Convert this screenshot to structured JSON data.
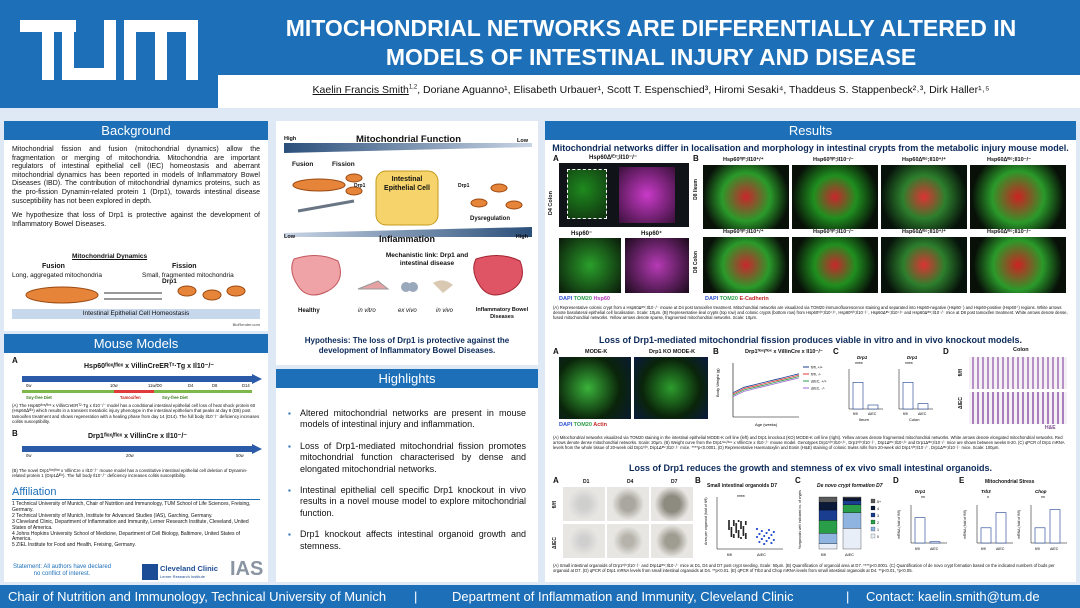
{
  "header": {
    "title_line1": "MITOCHONDRIAL NETWORKS ARE DIFFERENTIALLY ALTERED IN",
    "title_line2": "MODELS OF INTESTINAL INJURY AND DISEASE",
    "presenter": "Kaelin Francis Smith",
    "presenter_aff": "1,2",
    "authors_rest": ", Doriane Aguanno¹, Elisabeth Urbauer¹, Scott T. Espenschied³, Hiromi Sesaki⁴, Thaddeus S. Stappenbeck²˒³, Dirk Haller¹˒⁵"
  },
  "background": {
    "heading": "Background",
    "p1": "Mitochondrial fission and fusion (mitochondrial dynamics) allow the fragmentation or merging of mitochondria. Mitochondria are important regulators of intestinal epithelial cell (IEC) homeostasis and aberrant mitochondrial dynamics has been reported in models of Inflammatory Bowel Diseases (IBD). The contribution of mitochondrial dynamics proteins, such as the pro-fission Dynamin-related protein 1 (Drp1), towards intestinal disease susceptibility has not been explored in depth.",
    "p2": "We hypothesize that loss of Drp1 is protective against the development of Inflammatory Bowel Diseases.",
    "dyn_title": "Mitochondrial Dynamics",
    "fusion": "Fusion",
    "fission": "Fission",
    "fusion_sub": "Long, aggregated mitochondria",
    "fission_sub": "Small, fragmented mitochondria",
    "drp1": "Drp1",
    "homeo": "Intestinal Epithelial Cell Homeostasis",
    "credit": "BioRender.com"
  },
  "mouse": {
    "heading": "Mouse Models",
    "a_label": "A",
    "b_label": "B",
    "a_title": "Hsp60ᶠˡᵒˣ/ᶠˡᵒˣ x VillinCreERᵀ²·Tg x Il10⁻/⁻",
    "a_ticks": [
      "0w",
      "10w",
      "11w/D0",
      "D4",
      "D8",
      "D14"
    ],
    "a_soy": "Soy-free Diet",
    "a_tam": "Tamoxifen",
    "a_soy2": "Soy-free Diet",
    "a_caption": "(A) The Hsp60ᶠˡᵒˣ/ᶠˡᵒˣ x VillinCreERᵀ²·Tg x Il10⁻/⁻ model has a conditional intestinal epithelial cell loss of heat shock protein 60 (Hsp60ᐃᴵᴱᶜ) which results in a transient metabolic injury phenotype in the intestinal epithelium that peaks at day 8 (D8) post tamoxifen treatment and shows regeneration with a healing phase from day 14 (D14). The full body Il10⁻/⁻ deficiency increases colitis susceptibility.",
    "b_title": "Drp1ᶠˡᵒˣ/ᶠˡᵒˣ x VillinCre x Il10⁻/⁻",
    "b_ticks": [
      "0w",
      "20w",
      "50w"
    ],
    "b_caption": "(B) The novel Drp1ᶠˡᵒˣ/ᶠˡᵒˣ x VillinCre x Il10⁻/⁻ mouse model has a constitutive intestinal epithelial cell deletion of Dynamin-related protein 1 (Drp1ᐃᴵᴱᶜ). The full body Il10⁻/⁻ deficiency increases colitis susceptibility."
  },
  "affiliation": {
    "heading": "Affiliation",
    "items": [
      "1 Technical University of Munich, Chair of Nutrition and Immunology, TUM School of Life Sciences, Freising, Germany.",
      "2 Technical University of Munich, Institute for Advanced Studies (IAS), Garching, Germany.",
      "3 Cleveland Clinic, Department of Inflammation and Immunity, Lerner Research Institute, Cleveland, United States of America.",
      "4 Johns Hopkins University School of Medicine, Department of Cell Biology, Baltimore, United States of America.",
      "5 ZIEL Institute for Food and Health, Freising, Germany."
    ],
    "statement": "Statement: All authors have declared no conflict of interest.",
    "cc_name": "Cleveland Clinic",
    "cc_sub": "Lerner Research Institute",
    "ias": "IAS"
  },
  "mito_fig": {
    "title": "Mitochondrial Function",
    "high": "High",
    "low": "Low",
    "fusion": "Fusion",
    "fission": "Fission",
    "drp1a": "Drp1",
    "drp1b": "Drp1",
    "cell": "Intestinal Epithelial Cell",
    "dysreg": "Dysregulation",
    "inflammation": "Inflammation",
    "low2": "Low",
    "high2": "High",
    "mech": "Mechanistic link: Drp1 and intestinal disease",
    "healthy": "Healthy",
    "invitro": "in vitro",
    "exvivo": "ex vivo",
    "invivo": "in vivo",
    "ibd": "Inflammatory Bowel Diseases",
    "hypothesis": "Hypothesis: The loss of Drp1 is protective against the development of Inflammatory Bowel Diseases."
  },
  "highlights": {
    "heading": "Highlights",
    "items": [
      "Altered mitochondrial networks are present in mouse models of intestinal injury and inflammation.",
      "Loss of Drp1-mediated mitochondrial fission promotes mitochondrial function characterised by dense and elongated mitochondrial networks.",
      "Intestinal epithelial cell specific Drp1 knockout in vivo results in a novel mouse model to explore mitochondrial function.",
      "Drp1 knockout affects intestinal organoid growth and stemness."
    ]
  },
  "results": {
    "heading": "Results",
    "s1_title": "Mitochondrial networks differ in localisation and morphology in intestinal crypts from the metabolic injury mouse model.",
    "s1_labels": {
      "A": "A",
      "B": "B",
      "a1": "Hsp60ᐃᴵᴱᶜ;Il10⁻/⁻",
      "a2": "Hsp60⁻",
      "a3": "Hsp60⁺",
      "d4": "D4 Colon",
      "d8i": "D8 Ileum",
      "d8c": "D8 Colon",
      "b1": "Hsp60ᶠˡ/ᶠˡ;Il10⁺/⁺",
      "b2": "Hsp60ᶠˡ/ᶠˡ;Il10⁻/⁻",
      "b3": "Hsp60ᐃᴵᴱᶜ;Il10⁺/⁺",
      "b4": "Hsp60ᐃᴵᴱᶜ;Il10⁻/⁻",
      "legA": [
        "DAPI",
        "TOM20",
        "Hsp60"
      ],
      "legB": [
        "DAPI",
        "TOM20",
        "E-Cadherin"
      ]
    },
    "s1_caption": "(A) Representative colonic crypt from a Hsp60ᐃᴵᴱᶜ;Il10⁻/⁻ mouse at D4 post tamoxifen treatment. Mitochondrial networks are visualized via TOM20 immunofluorescence staining and separated into Hsp60-negative (Hsp60⁻) and Hsp60-positive (Hsp60⁺) regions. White arrows denote basolateral epithelial cell localisation. Scale: 10μm. (B) Representative ileal crypts (top row) and colonic crypts (bottom row) from Hsp60ᶠˡ/ᶠˡ;Il10⁺/⁺, Hsp60ᶠˡ/ᶠˡ;Il10⁻/⁻, Hsp60ᐃᴵᴱᶜ;Il10⁺/⁺ and Hsp60ᐃᴵᴱᶜ;Il10⁻/⁻ mice at D8 post tamoxifen treatment. White arrows denote dense, fused mitochondrial networks. Yellow arrows denote sparse, fragmented mitochondrial networks. Scale: 10μm.",
    "s2_title": "Loss of Drp1-mediated mitochondrial fission produces viable in vitro and in vivo knockout models.",
    "s2_labels": {
      "A": "A",
      "B": "B",
      "C": "C",
      "D": "D",
      "modek": "MODE-K",
      "ko": "Drp1 KO MODE-K",
      "leg": [
        "DAPI",
        "TOM20",
        "Actin"
      ],
      "weight_title": "Drp1ᶠˡᵒˣ/ᶠˡᵒˣ x VillinCre x Il10⁻/⁻",
      "ylab": "Body Weight (g)",
      "xlab": "Age (weeks)",
      "series": [
        "fl/fl, +/+",
        "fl/fl, -/-",
        "ΔIEC, +/+",
        "ΔIEC, -/-"
      ],
      "c1": "Drp1",
      "c2": "Drp1",
      "ileum": "Ileum",
      "colon": "Colon",
      "sig": "****",
      "colonD": "Colon",
      "flfl": "fl/fl",
      "dIEC": "ΔIEC",
      "he": "H&E"
    },
    "s2_caption": "(A) Mitochondrial networks visualized via TOM20 staining in the intestinal epithelial MODE-K cell line (left) and Drp1 knockout (KO) MODE-K cell line (right). Yellow arrows denote fragmented mitochondrial networks. White arrows denote elongated mitochondrial networks. Red arrows denote dense mitochondrial networks. Scale: 20μm. (B) Weight curve from the Drp1ᶠˡᵒˣ/ᶠˡᵒˣ x VillinCre x Il10⁻/⁻ mouse model. Genotypes Drp1ᶠˡ/ᶠˡ;Il10⁺/⁺, Drp1ᶠˡ/ᶠˡ;Il10⁻/⁻, Drp1ᐃᴵᴱᶜ;Il10⁺/⁺ and Drp1ᐃᴵᴱᶜ;Il10⁻/⁻ mice are shown between weeks 8-20. (C) qPCR of Drp1 mRNA levels from the whole tissue of 20-week old Drp1ᶠˡ/ᶠˡ, Drp1ᐃᴵᴱᶜ;Il10⁻/⁻ mice. ****p<0.0001. (D) Representative Haematoxylin and Eosin (H&E) staining of colonic Swiss rolls from 20-week old Drp1ᶠˡ/ᶠˡ;Il10⁻/⁻, Drp1ᐃᴵᴱᶜ;Il10⁻/⁻ mice. Scale: 100μm.",
    "s3_title": "Loss of Drp1 reduces the growth and stemness of ex vivo small intestinal organoids.",
    "s3_labels": {
      "A": "A",
      "B": "B",
      "C": "C",
      "D": "D",
      "E": "E",
      "d1": "D1",
      "d4": "D4",
      "d7": "D7",
      "flfl": "fl/fl",
      "dIEC": "ΔIEC",
      "b_title": "Small intestinal organoids D7",
      "b_y": "Area per organoid (fold of fl/fl)",
      "b_sig": "****",
      "c_title": "De novo crypt formation D7",
      "c_y": "%organoids with indicated no. of crypts",
      "c_legend": [
        "5+",
        "4",
        "3",
        "2",
        "1",
        "0"
      ],
      "d_title": "Drp1",
      "d_y": "mRNA (fold of fl/fl)",
      "d_sig": "**",
      "e_title": "Mitochondrial Stress",
      "e1": "Trb3",
      "e2": "Chop",
      "e_sig1": "*",
      "e_sig2": "**"
    },
    "s3_caption": "(A) Small intestinal organoids of Drp1ᶠˡ/ᶠˡ;Il10⁻/⁻ and Drp1ᐃᴵᴱᶜ;Il10⁻/⁻ mice at D1, D4 and D7 post crypt seeding. Scale: 50μm. (B) Quantification of organoid area at D7. ****p<0.0001. (C) Quantification of de novo crypt formation based on the indicated numbers of buds per organoid at D7. (D) qPCR of Drp1 mRNA levels from small intestinal organoids at D4. **p<0.01. (E) qPCR of Trb3 and Chop mRNA levels from small intestinal organoids at D4. **p<0.01, *p<0.05."
  },
  "footer": {
    "left": "Chair of Nutrition and Immunology, Technical University of Munich",
    "sep1": "|",
    "mid": "Department of Inflammation and Immunity, Cleveland Clinic",
    "sep2": "|",
    "right": "Contact: kaelin.smith@tum.de"
  },
  "chart_data": [
    {
      "type": "line",
      "title": "Drp1ᶠˡᵒˣ/ᶠˡᵒˣ x VillinCre x Il10⁻/⁻",
      "xlabel": "Age (weeks)",
      "ylabel": "Body Weight (g)",
      "x": [
        8,
        9,
        10,
        11,
        12,
        13,
        14,
        15,
        16,
        17,
        18,
        19,
        20
      ],
      "ylim": [
        10,
        30
      ],
      "series": [
        {
          "name": "fl/fl, +/+",
          "color": "#1a3d8f",
          "values": [
            19,
            20,
            21,
            21.5,
            22,
            22.5,
            23,
            23.5,
            24,
            24.5,
            25,
            25.5,
            26
          ]
        },
        {
          "name": "fl/fl, -/-",
          "color": "#e03a3a",
          "values": [
            18.5,
            19.5,
            20.5,
            21,
            21.5,
            22,
            22.5,
            23,
            23.5,
            24,
            24.5,
            25,
            25.5
          ]
        },
        {
          "name": "ΔIEC, +/+",
          "color": "#2a9d48",
          "values": [
            18,
            19,
            20,
            20.5,
            21,
            21.5,
            22,
            22.5,
            23,
            23.5,
            24,
            24.5,
            25
          ]
        },
        {
          "name": "ΔIEC, -/-",
          "color": "#9b6ad1",
          "values": [
            17.5,
            18.5,
            19.5,
            20,
            20.5,
            21,
            21.5,
            22,
            22.5,
            23,
            23.5,
            24,
            24.5
          ]
        }
      ]
    },
    {
      "type": "bar",
      "title": "Drp1",
      "categories": [
        "fl/fl",
        "ΔIEC"
      ],
      "values": [
        1.0,
        0.15
      ],
      "ylim": [
        0,
        1.5
      ]
    },
    {
      "type": "bar",
      "title": "Drp1",
      "categories": [
        "fl/fl",
        "ΔIEC"
      ],
      "values": [
        1.0,
        0.2
      ],
      "ylim": [
        0,
        1.5
      ]
    },
    {
      "type": "bar",
      "title": "De novo crypt formation D7",
      "categories": [
        "fl/fl",
        "ΔIEC"
      ],
      "series": [
        {
          "name": "0",
          "values": [
            10,
            40
          ]
        },
        {
          "name": "1",
          "values": [
            20,
            30
          ]
        },
        {
          "name": "2",
          "values": [
            25,
            15
          ]
        },
        {
          "name": "3",
          "values": [
            20,
            8
          ]
        },
        {
          "name": "4",
          "values": [
            15,
            5
          ]
        },
        {
          "name": "5+",
          "values": [
            10,
            2
          ]
        }
      ]
    },
    {
      "type": "bar",
      "title": "Drp1",
      "categories": [
        "fl/fl",
        "ΔIEC"
      ],
      "values": [
        1.0,
        0.05
      ]
    },
    {
      "type": "bar",
      "title": "Trb3",
      "categories": [
        "fl/fl",
        "ΔIEC"
      ],
      "values": [
        1.0,
        2.0
      ]
    },
    {
      "type": "bar",
      "title": "Chop",
      "categories": [
        "fl/fl",
        "ΔIEC"
      ],
      "values": [
        1.0,
        2.2
      ]
    }
  ]
}
